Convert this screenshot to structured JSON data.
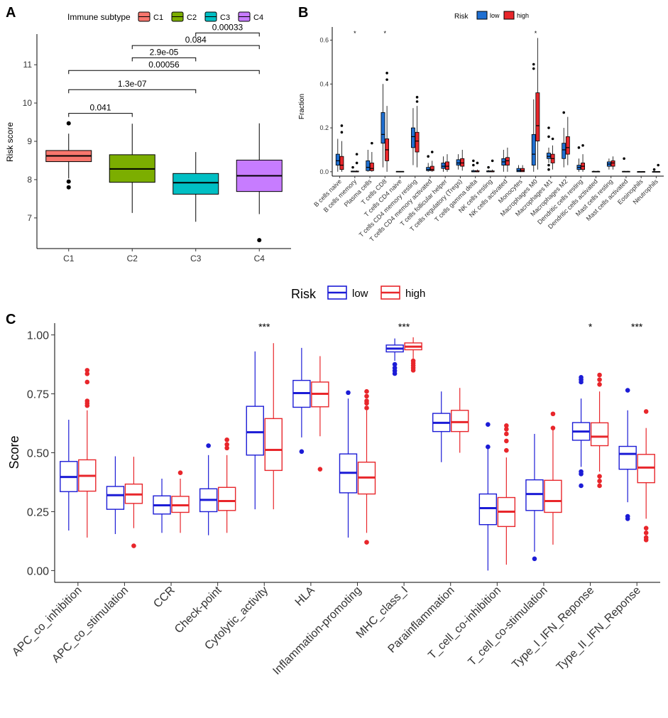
{
  "chart_data": [
    {
      "panel": "A",
      "type": "box",
      "legend_title": "Immune subtype",
      "ylabel": "Risk score",
      "ylim": [
        6.2,
        11.8
      ],
      "yticks": [
        7,
        8,
        9,
        10,
        11
      ],
      "categories": [
        "C1",
        "C2",
        "C3",
        "C4"
      ],
      "colors": [
        "#F8766D",
        "#7CAE00",
        "#00BFC4",
        "#C77CFF"
      ],
      "boxes": [
        {
          "q1": 8.47,
          "med": 8.62,
          "q3": 8.76,
          "lo": 8.03,
          "hi": 9.2,
          "out": [
            9.47,
            7.95,
            7.8
          ]
        },
        {
          "q1": 7.93,
          "med": 8.28,
          "q3": 8.65,
          "lo": 7.13,
          "hi": 9.46,
          "out": []
        },
        {
          "q1": 7.62,
          "med": 7.92,
          "q3": 8.16,
          "lo": 6.9,
          "hi": 8.72,
          "out": []
        },
        {
          "q1": 7.69,
          "med": 8.1,
          "q3": 8.51,
          "lo": 7.1,
          "hi": 9.47,
          "out": [
            6.42
          ]
        }
      ],
      "comparisons": [
        {
          "a": 0,
          "b": 1,
          "label": "0.041",
          "y": 9.73
        },
        {
          "a": 0,
          "b": 2,
          "label": "1.3e-07",
          "y": 10.35
        },
        {
          "a": 0,
          "b": 3,
          "label": "0.00056",
          "y": 10.85
        },
        {
          "a": 1,
          "b": 2,
          "label": "2.9e-05",
          "y": 11.18
        },
        {
          "a": 1,
          "b": 3,
          "label": "0.084",
          "y": 11.5
        },
        {
          "a": 2,
          "b": 3,
          "label": "0.00033",
          "y": 11.83
        }
      ]
    },
    {
      "panel": "B",
      "type": "box",
      "legend_title": "Risk",
      "series_names": [
        "low",
        "high"
      ],
      "colors": [
        "#1F6FD1",
        "#E8262B"
      ],
      "ylabel": "Fraction",
      "ylim": [
        -0.02,
        0.66
      ],
      "yticks": [
        0.0,
        0.2,
        0.4,
        0.6
      ],
      "categories": [
        "B cells naive",
        "B cells memory",
        "Plasma cells",
        "T cells CD8",
        "T cells CD4 naive",
        "T cells CD4 memory resting",
        "T cells CD4 memory activated",
        "T cells follicular helper",
        "T cells regulatory (Tregs)",
        "T cells gamma delta",
        "NK cells resting",
        "NK cells activated",
        "Monocytes",
        "Macrophages M0",
        "Macrophages M1",
        "Macrophages M2",
        "Dendritic cells resting",
        "Dendritic cells activated",
        "Mast cells resting",
        "Mast cells activated",
        "Eosinophils",
        "Neutrophils"
      ],
      "significance": [
        "",
        "*",
        "",
        "*",
        "",
        "",
        "",
        "",
        "",
        "",
        "",
        "",
        "",
        "*",
        "",
        "",
        "",
        "",
        "",
        "",
        "",
        ""
      ],
      "low": [
        {
          "q1": 0.03,
          "med": 0.05,
          "q3": 0.08,
          "lo": 0.0,
          "hi": 0.15,
          "out": []
        },
        {
          "q1": 0.0,
          "med": 0.0,
          "q3": 0.003,
          "lo": 0.0,
          "hi": 0.005,
          "out": [
            0.02
          ]
        },
        {
          "q1": 0.005,
          "med": 0.02,
          "q3": 0.05,
          "lo": 0.0,
          "hi": 0.1,
          "out": []
        },
        {
          "q1": 0.13,
          "med": 0.17,
          "q3": 0.27,
          "lo": 0.02,
          "hi": 0.4,
          "out": []
        },
        {
          "q1": 0.0,
          "med": 0.0,
          "q3": 0.002,
          "lo": 0.0,
          "hi": 0.003,
          "out": []
        },
        {
          "q1": 0.11,
          "med": 0.16,
          "q3": 0.2,
          "lo": 0.03,
          "hi": 0.29,
          "out": []
        },
        {
          "q1": 0.005,
          "med": 0.01,
          "q3": 0.02,
          "lo": 0.0,
          "hi": 0.04,
          "out": [
            0.07
          ]
        },
        {
          "q1": 0.015,
          "med": 0.025,
          "q3": 0.04,
          "lo": 0.0,
          "hi": 0.07,
          "out": []
        },
        {
          "q1": 0.03,
          "med": 0.04,
          "q3": 0.055,
          "lo": 0.01,
          "hi": 0.08,
          "out": []
        },
        {
          "q1": 0.0,
          "med": 0.0,
          "q3": 0.005,
          "lo": 0.0,
          "hi": 0.01,
          "out": [
            0.03,
            0.05
          ]
        },
        {
          "q1": 0.0,
          "med": 0.0,
          "q3": 0.004,
          "lo": 0.0,
          "hi": 0.008,
          "out": [
            0.02
          ]
        },
        {
          "q1": 0.03,
          "med": 0.045,
          "q3": 0.06,
          "lo": 0.0,
          "hi": 0.1,
          "out": []
        },
        {
          "q1": 0.0,
          "med": 0.005,
          "q3": 0.015,
          "lo": 0.0,
          "hi": 0.03,
          "out": []
        },
        {
          "q1": 0.03,
          "med": 0.08,
          "q3": 0.17,
          "lo": 0.0,
          "hi": 0.33,
          "out": [
            0.47,
            0.49
          ]
        },
        {
          "q1": 0.06,
          "med": 0.07,
          "q3": 0.085,
          "lo": 0.04,
          "hi": 0.11,
          "out": [
            0.01,
            0.03,
            0.16,
            0.2
          ]
        },
        {
          "q1": 0.06,
          "med": 0.1,
          "q3": 0.13,
          "lo": 0.02,
          "hi": 0.2,
          "out": [
            0.27
          ]
        },
        {
          "q1": 0.01,
          "med": 0.02,
          "q3": 0.03,
          "lo": 0.0,
          "hi": 0.06,
          "out": [
            0.11
          ]
        },
        {
          "q1": 0.0,
          "med": 0.0,
          "q3": 0.002,
          "lo": 0.0,
          "hi": 0.005,
          "out": []
        },
        {
          "q1": 0.025,
          "med": 0.035,
          "q3": 0.045,
          "lo": 0.01,
          "hi": 0.06,
          "out": []
        },
        {
          "q1": 0.0,
          "med": 0.0,
          "q3": 0.002,
          "lo": 0.0,
          "hi": 0.004,
          "out": [
            0.06
          ]
        },
        {
          "q1": 0.0,
          "med": 0.0,
          "q3": 0.001,
          "lo": 0.0,
          "hi": 0.003,
          "out": []
        },
        {
          "q1": 0.0,
          "med": 0.0,
          "q3": 0.001,
          "lo": 0.0,
          "hi": 0.003,
          "out": [
            0.01
          ]
        }
      ],
      "high": [
        {
          "q1": 0.01,
          "med": 0.03,
          "q3": 0.07,
          "lo": 0.0,
          "hi": 0.14,
          "out": [
            0.18,
            0.21
          ]
        },
        {
          "q1": 0.0,
          "med": 0.0,
          "q3": 0.003,
          "lo": 0.0,
          "hi": 0.006,
          "out": [
            0.04,
            0.08
          ]
        },
        {
          "q1": 0.005,
          "med": 0.015,
          "q3": 0.04,
          "lo": 0.0,
          "hi": 0.09,
          "out": [
            0.13
          ]
        },
        {
          "q1": 0.05,
          "med": 0.1,
          "q3": 0.15,
          "lo": 0.0,
          "hi": 0.3,
          "out": [
            0.42,
            0.45
          ]
        },
        {
          "q1": 0.0,
          "med": 0.0,
          "q3": 0.002,
          "lo": 0.0,
          "hi": 0.003,
          "out": []
        },
        {
          "q1": 0.09,
          "med": 0.14,
          "q3": 0.18,
          "lo": 0.02,
          "hi": 0.3,
          "out": [
            0.32,
            0.34
          ]
        },
        {
          "q1": 0.005,
          "med": 0.01,
          "q3": 0.025,
          "lo": 0.0,
          "hi": 0.05,
          "out": [
            0.09
          ]
        },
        {
          "q1": 0.01,
          "med": 0.025,
          "q3": 0.045,
          "lo": 0.0,
          "hi": 0.08,
          "out": []
        },
        {
          "q1": 0.025,
          "med": 0.04,
          "q3": 0.06,
          "lo": 0.005,
          "hi": 0.1,
          "out": []
        },
        {
          "q1": 0.0,
          "med": 0.0,
          "q3": 0.005,
          "lo": 0.0,
          "hi": 0.01,
          "out": [
            0.04
          ]
        },
        {
          "q1": 0.0,
          "med": 0.0,
          "q3": 0.004,
          "lo": 0.0,
          "hi": 0.01,
          "out": [
            0.05
          ]
        },
        {
          "q1": 0.03,
          "med": 0.05,
          "q3": 0.065,
          "lo": 0.0,
          "hi": 0.11,
          "out": []
        },
        {
          "q1": 0.0,
          "med": 0.005,
          "q3": 0.015,
          "lo": 0.0,
          "hi": 0.03,
          "out": []
        },
        {
          "q1": 0.14,
          "med": 0.21,
          "q3": 0.36,
          "lo": 0.01,
          "hi": 0.61,
          "out": []
        },
        {
          "q1": 0.04,
          "med": 0.06,
          "q3": 0.08,
          "lo": 0.01,
          "hi": 0.12,
          "out": [
            0.15
          ]
        },
        {
          "q1": 0.08,
          "med": 0.11,
          "q3": 0.16,
          "lo": 0.03,
          "hi": 0.25,
          "out": []
        },
        {
          "q1": 0.01,
          "med": 0.025,
          "q3": 0.04,
          "lo": 0.0,
          "hi": 0.08,
          "out": [
            0.12
          ]
        },
        {
          "q1": 0.0,
          "med": 0.0,
          "q3": 0.002,
          "lo": 0.0,
          "hi": 0.005,
          "out": []
        },
        {
          "q1": 0.025,
          "med": 0.04,
          "q3": 0.05,
          "lo": 0.01,
          "hi": 0.07,
          "out": []
        },
        {
          "q1": 0.0,
          "med": 0.0,
          "q3": 0.002,
          "lo": 0.0,
          "hi": 0.004,
          "out": []
        },
        {
          "q1": 0.0,
          "med": 0.0,
          "q3": 0.001,
          "lo": 0.0,
          "hi": 0.003,
          "out": []
        },
        {
          "q1": 0.0,
          "med": 0.0,
          "q3": 0.001,
          "lo": 0.0,
          "hi": 0.003,
          "out": [
            0.03
          ]
        }
      ]
    },
    {
      "panel": "C",
      "type": "box",
      "legend_title": "Risk",
      "series_names": [
        "low",
        "high"
      ],
      "colors": [
        "#1C1CD6",
        "#E8262B"
      ],
      "ylabel": "Score",
      "ylim": [
        -0.05,
        1.05
      ],
      "yticks": [
        "0.00",
        "0.25",
        "0.50",
        "0.75",
        "1.00"
      ],
      "categories": [
        "APC_co_inhibition",
        "APC_co_stimulation",
        "CCR",
        "Check-point",
        "Cytolytic_activity",
        "HLA",
        "Inflammation-promoting",
        "MHC_class_I",
        "Parainflammation",
        "T_cell_co-inhibition",
        "T_cell_co-stimulation",
        "Type_I_IFN_Reponse",
        "Type_II_IFN_Reponse"
      ],
      "significance": [
        "",
        "",
        "",
        "",
        "***",
        "",
        "",
        "***",
        "",
        "",
        "",
        "*",
        "***"
      ],
      "low": [
        {
          "q1": 0.335,
          "med": 0.397,
          "q3": 0.463,
          "lo": 0.17,
          "hi": 0.64,
          "out": []
        },
        {
          "q1": 0.26,
          "med": 0.32,
          "q3": 0.357,
          "lo": 0.155,
          "hi": 0.485,
          "out": []
        },
        {
          "q1": 0.24,
          "med": 0.277,
          "q3": 0.317,
          "lo": 0.16,
          "hi": 0.39,
          "out": []
        },
        {
          "q1": 0.25,
          "med": 0.3,
          "q3": 0.347,
          "lo": 0.15,
          "hi": 0.49,
          "out": [
            0.53
          ]
        },
        {
          "q1": 0.49,
          "med": 0.587,
          "q3": 0.697,
          "lo": 0.26,
          "hi": 0.93,
          "out": []
        },
        {
          "q1": 0.693,
          "med": 0.753,
          "q3": 0.807,
          "lo": 0.565,
          "hi": 0.945,
          "out": [
            0.505
          ]
        },
        {
          "q1": 0.33,
          "med": 0.415,
          "q3": 0.495,
          "lo": 0.14,
          "hi": 0.73,
          "out": [
            0.755
          ]
        },
        {
          "q1": 0.928,
          "med": 0.942,
          "q3": 0.957,
          "lo": 0.89,
          "hi": 0.985,
          "out": [
            0.875,
            0.86,
            0.848,
            0.836
          ]
        },
        {
          "q1": 0.59,
          "med": 0.627,
          "q3": 0.667,
          "lo": 0.46,
          "hi": 0.76,
          "out": []
        },
        {
          "q1": 0.195,
          "med": 0.265,
          "q3": 0.325,
          "lo": 0.0,
          "hi": 0.52,
          "out": [
            0.525,
            0.62
          ]
        },
        {
          "q1": 0.255,
          "med": 0.325,
          "q3": 0.385,
          "lo": 0.08,
          "hi": 0.58,
          "out": [
            0.05
          ]
        },
        {
          "q1": 0.553,
          "med": 0.59,
          "q3": 0.628,
          "lo": 0.44,
          "hi": 0.73,
          "out": [
            0.82,
            0.81,
            0.8,
            0.42,
            0.41,
            0.36
          ]
        },
        {
          "q1": 0.43,
          "med": 0.495,
          "q3": 0.527,
          "lo": 0.29,
          "hi": 0.68,
          "out": [
            0.765,
            0.23,
            0.22
          ]
        }
      ],
      "high": [
        {
          "q1": 0.337,
          "med": 0.402,
          "q3": 0.47,
          "lo": 0.14,
          "hi": 0.68,
          "out": [
            0.7,
            0.71,
            0.72,
            0.8,
            0.835,
            0.85
          ]
        },
        {
          "q1": 0.285,
          "med": 0.323,
          "q3": 0.367,
          "lo": 0.18,
          "hi": 0.483,
          "out": [
            0.105
          ]
        },
        {
          "q1": 0.247,
          "med": 0.277,
          "q3": 0.315,
          "lo": 0.16,
          "hi": 0.39,
          "out": [
            0.415
          ]
        },
        {
          "q1": 0.255,
          "med": 0.295,
          "q3": 0.353,
          "lo": 0.16,
          "hi": 0.49,
          "out": [
            0.52,
            0.535,
            0.555
          ]
        },
        {
          "q1": 0.425,
          "med": 0.512,
          "q3": 0.645,
          "lo": 0.26,
          "hi": 0.965,
          "out": []
        },
        {
          "q1": 0.695,
          "med": 0.75,
          "q3": 0.8,
          "lo": 0.57,
          "hi": 0.91,
          "out": [
            0.43
          ]
        },
        {
          "q1": 0.325,
          "med": 0.395,
          "q3": 0.46,
          "lo": 0.16,
          "hi": 0.68,
          "out": [
            0.69,
            0.71,
            0.72,
            0.74,
            0.76,
            0.12
          ]
        },
        {
          "q1": 0.937,
          "med": 0.95,
          "q3": 0.966,
          "lo": 0.9,
          "hi": 0.99,
          "out": [
            0.89,
            0.88,
            0.87,
            0.86,
            0.85
          ]
        },
        {
          "q1": 0.59,
          "med": 0.63,
          "q3": 0.68,
          "lo": 0.5,
          "hi": 0.775,
          "out": []
        },
        {
          "q1": 0.187,
          "med": 0.25,
          "q3": 0.31,
          "lo": 0.025,
          "hi": 0.48,
          "out": [
            0.51,
            0.55,
            0.58,
            0.6,
            0.615
          ]
        },
        {
          "q1": 0.247,
          "med": 0.295,
          "q3": 0.383,
          "lo": 0.11,
          "hi": 0.6,
          "out": [
            0.605,
            0.665
          ]
        },
        {
          "q1": 0.53,
          "med": 0.568,
          "q3": 0.627,
          "lo": 0.42,
          "hi": 0.76,
          "out": [
            0.79,
            0.81,
            0.83,
            0.4,
            0.38,
            0.36
          ]
        },
        {
          "q1": 0.373,
          "med": 0.437,
          "q3": 0.493,
          "lo": 0.22,
          "hi": 0.605,
          "out": [
            0.675,
            0.18,
            0.16,
            0.14,
            0.13
          ]
        }
      ]
    }
  ]
}
